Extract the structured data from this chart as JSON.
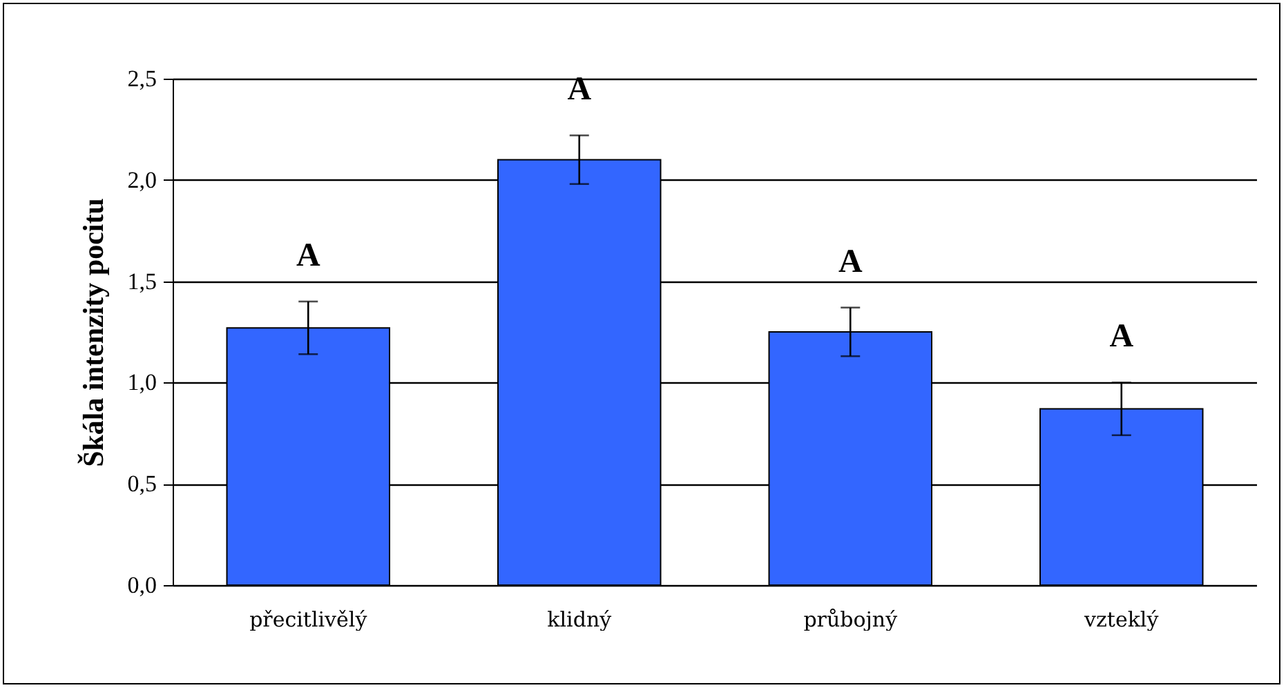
{
  "chart_data": {
    "type": "bar",
    "ylabel": "Škála intenzity pocitu",
    "categories": [
      "přecitlivělý",
      "klidný",
      "průbojný",
      "vzteklý"
    ],
    "values": [
      1.27,
      2.1,
      1.25,
      0.87
    ],
    "errors": [
      0.13,
      0.12,
      0.12,
      0.13
    ],
    "color": "#3366ff",
    "ylim": [
      0,
      2.5
    ],
    "yticks": [
      {
        "value": 0,
        "label": "0,0"
      },
      {
        "value": 0.5,
        "label": "0,5"
      },
      {
        "value": 1,
        "label": "1,0"
      },
      {
        "value": 1.5,
        "label": "1,5"
      },
      {
        "value": 2,
        "label": "2,0"
      },
      {
        "value": 2.5,
        "label": "2,5"
      }
    ],
    "grid": "y",
    "annotations": [
      "A",
      "A",
      "A",
      "A"
    ]
  }
}
